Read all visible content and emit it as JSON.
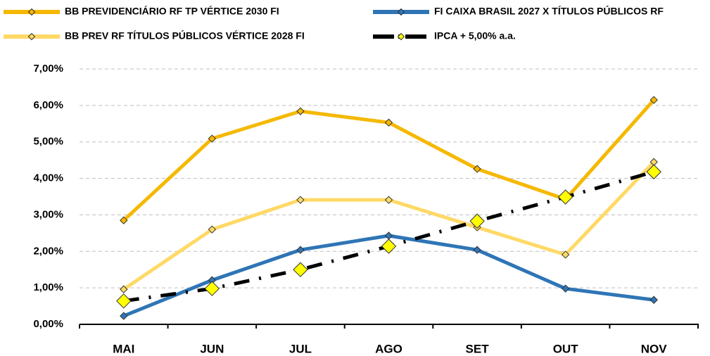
{
  "chart_data": {
    "type": "line",
    "categories": [
      "MAI",
      "JUN",
      "JUL",
      "AGO",
      "SET",
      "OUT",
      "NOV"
    ],
    "series": [
      {
        "name": "BB PREVIDENCIÁRIO RF TP VÉRTICE 2030 FI",
        "color": "#f5b800",
        "values": [
          2.85,
          5.09,
          5.84,
          5.53,
          4.26,
          3.43,
          6.15
        ]
      },
      {
        "name": "FI CAIXA BRASIL 2027 X TÍTULOS PÚBLICOS RF",
        "color": "#2e75b6",
        "values": [
          0.23,
          1.21,
          2.04,
          2.43,
          2.04,
          0.98,
          0.67
        ]
      },
      {
        "name": "BB PREV RF TÍTULOS PÚBLICOS VÉRTICE 2028 FI",
        "color": "#ffd966",
        "values": [
          0.96,
          2.6,
          3.41,
          3.41,
          2.66,
          1.91,
          4.45
        ]
      },
      {
        "name": "IPCA + 5,00% a.a.",
        "color": "#000000",
        "marker_color": "#ffff00",
        "line_style": "dashdot",
        "values": [
          0.64,
          0.98,
          1.5,
          2.14,
          2.83,
          3.49,
          4.18
        ]
      }
    ],
    "ylim": [
      0,
      7
    ],
    "yticks": [
      {
        "value": 0,
        "label": "0,00%"
      },
      {
        "value": 1,
        "label": "1,00%"
      },
      {
        "value": 2,
        "label": "2,00%"
      },
      {
        "value": 3,
        "label": "3,00%"
      },
      {
        "value": 4,
        "label": "4,00%"
      },
      {
        "value": 5,
        "label": "5,00%"
      },
      {
        "value": 6,
        "label": "6,00%"
      },
      {
        "value": 7,
        "label": "7,00%"
      }
    ],
    "grid": true
  }
}
